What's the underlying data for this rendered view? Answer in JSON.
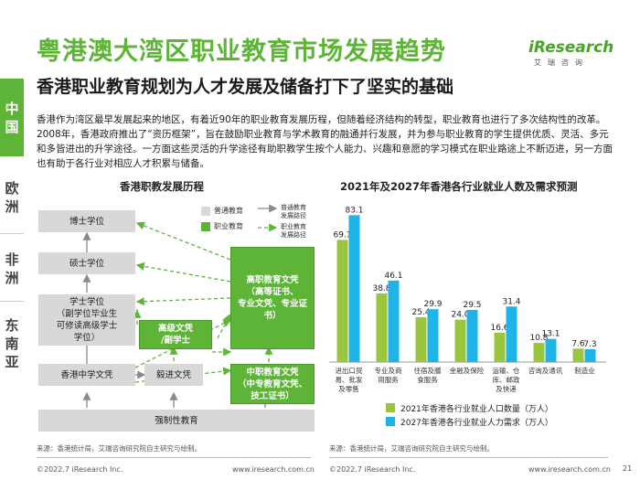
{
  "header": {
    "title": "粤港澳大湾区职业教育市场发展趋势",
    "subtitle": "香港职业教育规划为人才发展及储备打下了坚实的基础",
    "logo_main": "iResearch",
    "logo_sub": "艾瑞咨询"
  },
  "side_tabs": [
    "中国",
    "欧洲",
    "非洲",
    "东南亚"
  ],
  "body_text": "香港作为湾区最早发展起来的地区，有着近90年的职业教育发展历程，但随着经济结构的转型，职业教育也进行了多次结构性的改革。2008年，香港政府推出了“资历框架”，旨在鼓励职业教育与学术教育的融通并行发展，并为参与职业教育的学生提供优质、灵活、多元和多皆进出的升学途径。一方面这些灵活的升学途径有助职教学生按个人能力、兴趣和意愿的学习模式在职业路途上不断迈进，另一方面也有助于各行业对相应人才积累与储备。",
  "diagram": {
    "title": "香港职教发展历程",
    "legend": {
      "general_edu": "普通教育",
      "vocational_edu": "职业教育",
      "general_path": [
        "普通教育",
        "发展路径"
      ],
      "vocational_path": [
        "职业教育",
        "发展路径"
      ]
    },
    "boxes": {
      "doctor": "博士学位",
      "master": "硕士学位",
      "bachelor": [
        "学士学位",
        "（副学位毕业生",
        "可修读高级学士",
        "学位）"
      ],
      "higher_voc": [
        "高职教育文凭",
        "（高等证书、",
        "专业文凭、专业证",
        "书）"
      ],
      "advanced": [
        "高级文凭",
        "/副学士"
      ],
      "hk_secondary": "香港中学文凭",
      "yijin": "毅进文凭",
      "secondary_voc": [
        "中职教育文凭",
        "（中专教育文凭、",
        "技工证书）"
      ],
      "compulsory": "强制性教育"
    }
  },
  "chart_data": {
    "type": "bar",
    "title": "2021年及2027年香港各行业就业人数及需求预测",
    "categories": [
      [
        "进出口贸",
        "易、批发",
        "及零售"
      ],
      [
        "专业及商",
        "用服务"
      ],
      [
        "住宿及膳",
        "食服务"
      ],
      [
        "金融及保险"
      ],
      [
        "运输、仓",
        "库、邮政",
        "及快递"
      ],
      [
        "咨询及通讯"
      ],
      [
        "制造业"
      ]
    ],
    "series": [
      {
        "name": "2021年香港各行业就业人口数量（万人）",
        "color": "#9bc53d",
        "values": [
          69.1,
          38.8,
          25.4,
          24.0,
          16.6,
          10.8,
          7.6
        ]
      },
      {
        "name": "2027年香港各行业就业人力需求（万人）",
        "color": "#1fb4e8",
        "values": [
          83.1,
          46.1,
          29.9,
          29.5,
          31.4,
          13.1,
          7.3
        ]
      }
    ],
    "value_labels": [
      [
        "69.1",
        "38.8",
        "25.4",
        "24.0",
        "16.6",
        "10.8",
        "7.6"
      ],
      [
        "83.1",
        "46.1",
        "29.9",
        "29.5",
        "31.4",
        "13.1",
        "7.3"
      ]
    ],
    "ylim": [
      0,
      90
    ]
  },
  "sources": {
    "left": "来源：香港统计局，艾瑞咨询研究院自主研究与绘制。",
    "right": "来源：香港统计局，艾瑞咨询研究院自主研究与绘制。"
  },
  "footer": {
    "copyright_left": "©2022.7 iResearch Inc.",
    "url_left": "www.iresearch.com.cn",
    "copyright_right": "©2022.7 iResearch Inc.",
    "url_right": "www.iresearch.com.cn",
    "page": "21"
  },
  "colors": {
    "brand_green": "#5db437",
    "gray_box": "#d8d8d8",
    "bar_2021": "#9bc53d",
    "bar_2027": "#1fb4e8"
  }
}
